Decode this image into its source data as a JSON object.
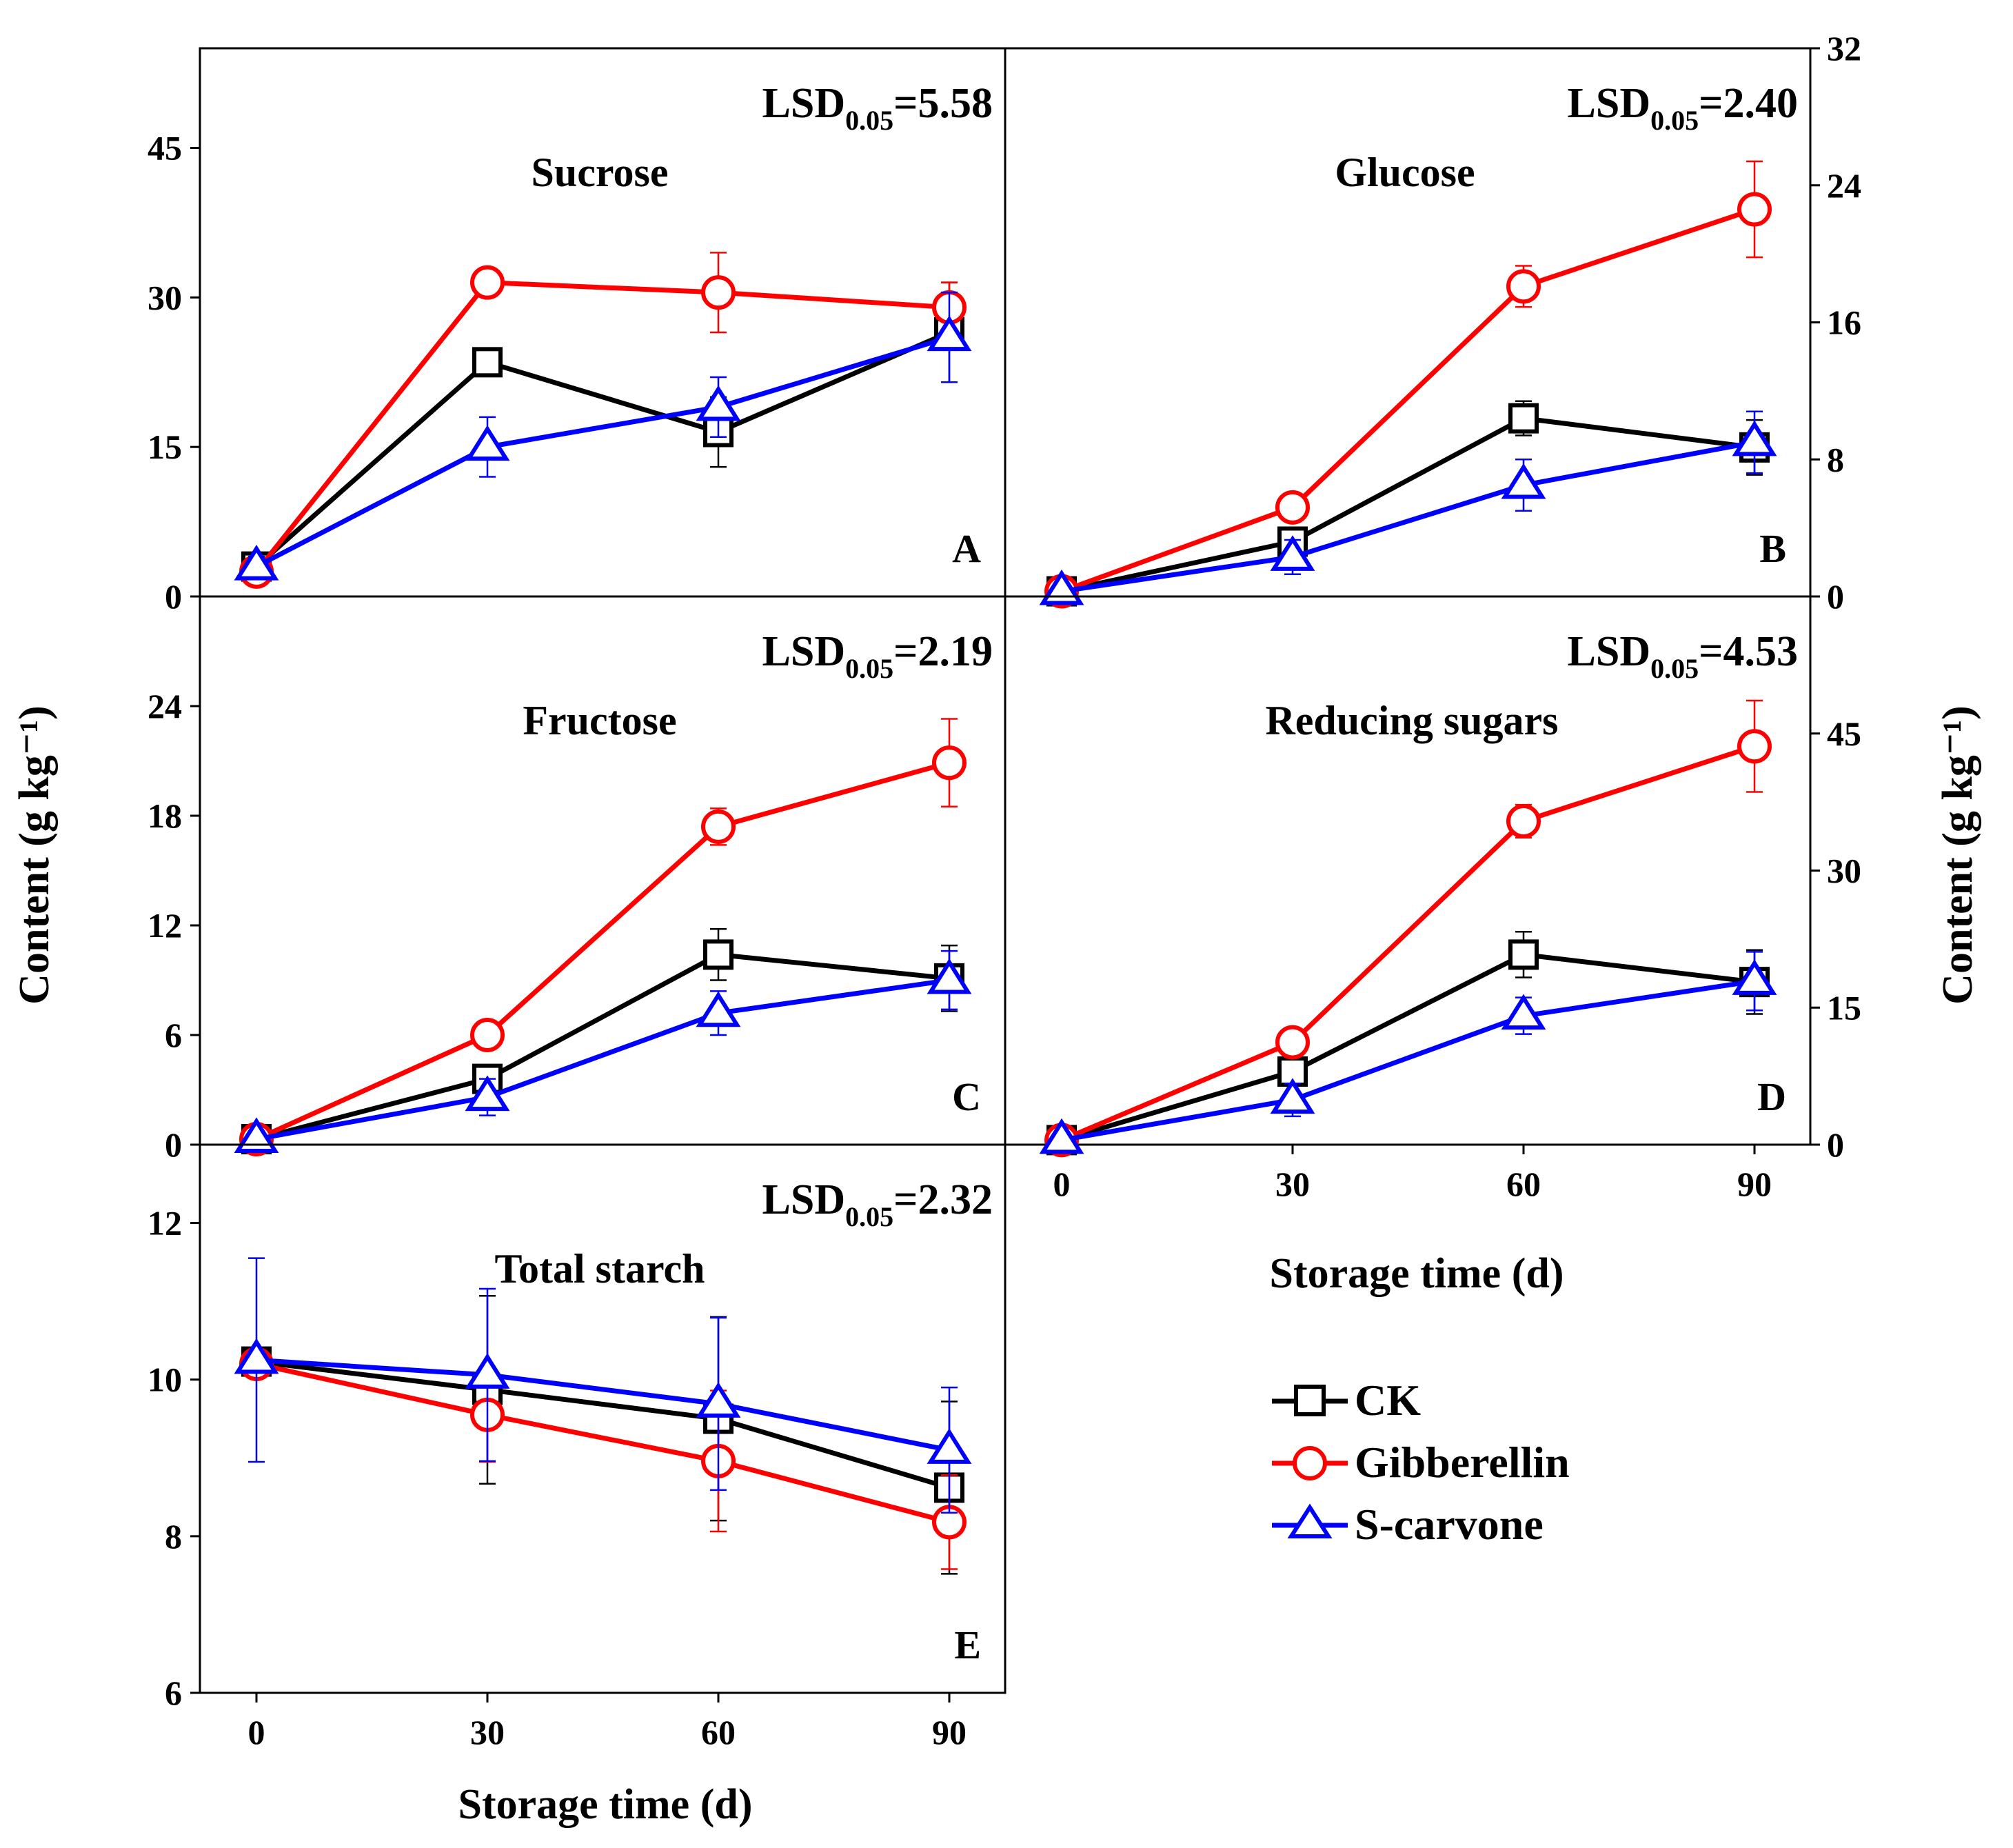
{
  "colors": {
    "CK": "#000000",
    "Gibberellin": "#ff0000",
    "S-carvone": "#0000ff"
  },
  "legend": {
    "items": [
      {
        "name": "CK",
        "marker": "square"
      },
      {
        "name": "Gibberellin",
        "marker": "circle"
      },
      {
        "name": "S-carvone",
        "marker": "triangle"
      }
    ]
  },
  "axis_titles": {
    "y_left": "Content (g kg⁻¹)",
    "y_right": "Content (g kg⁻¹)",
    "x_bottom": "Storage time (d)",
    "x_right": "Storage time (d)"
  },
  "chart_data": [
    {
      "id": "A",
      "type": "line",
      "title": "Sucrose",
      "lsd": "LSD0.05=5.58",
      "x": [
        0,
        30,
        60,
        90
      ],
      "x_ticks": [],
      "ylim": [
        0,
        55
      ],
      "y_ticks": [
        0,
        15,
        30,
        45
      ],
      "y_axis_side": "left",
      "series": [
        {
          "name": "CK",
          "values": [
            3,
            23.5,
            16.5,
            26.5
          ],
          "errors": [
            1.2,
            1.2,
            3.5,
            5.0
          ]
        },
        {
          "name": "Gibberellin",
          "values": [
            2.5,
            31.5,
            30.5,
            29
          ],
          "errors": [
            1.2,
            1.0,
            4.0,
            2.5
          ]
        },
        {
          "name": "S-carvone",
          "values": [
            3,
            15,
            19,
            26
          ],
          "errors": [
            1.0,
            3.0,
            3.0,
            4.5
          ]
        }
      ]
    },
    {
      "id": "B",
      "type": "line",
      "title": "Glucose",
      "lsd": "LSD0.05=2.40",
      "x": [
        0,
        30,
        60,
        90
      ],
      "x_ticks": [],
      "ylim": [
        0,
        32
      ],
      "y_ticks": [
        0,
        8,
        16,
        24,
        32
      ],
      "y_axis_side": "right",
      "series": [
        {
          "name": "CK",
          "values": [
            0.3,
            3.2,
            10.4,
            8.7
          ],
          "errors": [
            0.2,
            0.6,
            1.0,
            1.6
          ]
        },
        {
          "name": "Gibberellin",
          "values": [
            0.3,
            5.2,
            18.1,
            22.6
          ],
          "errors": [
            0.2,
            0.7,
            1.2,
            2.8
          ]
        },
        {
          "name": "S-carvone",
          "values": [
            0.3,
            2.3,
            6.5,
            9.0
          ],
          "errors": [
            0.2,
            1.0,
            1.5,
            1.8
          ]
        }
      ]
    },
    {
      "id": "C",
      "type": "line",
      "title": "Fructose",
      "lsd": "LSD0.05=2.19",
      "x": [
        0,
        30,
        60,
        90
      ],
      "x_ticks": [],
      "ylim": [
        0,
        30
      ],
      "y_ticks": [
        0,
        6,
        12,
        18,
        24
      ],
      "y_axis_side": "left",
      "series": [
        {
          "name": "CK",
          "values": [
            0.3,
            3.6,
            10.4,
            9.1
          ],
          "errors": [
            0.2,
            0.6,
            1.4,
            1.8
          ]
        },
        {
          "name": "Gibberellin",
          "values": [
            0.3,
            6.0,
            17.4,
            20.9
          ],
          "errors": [
            0.2,
            0.6,
            1.0,
            2.4
          ]
        },
        {
          "name": "S-carvone",
          "values": [
            0.3,
            2.6,
            7.2,
            9.0
          ],
          "errors": [
            0.2,
            1.0,
            1.2,
            1.6
          ]
        }
      ]
    },
    {
      "id": "D",
      "type": "line",
      "title": "Reducing sugars",
      "lsd": "LSD0.05=4.53",
      "x": [
        0,
        30,
        60,
        90
      ],
      "x_ticks": [
        0,
        30,
        60,
        90
      ],
      "ylim": [
        0,
        60
      ],
      "y_ticks": [
        0,
        15,
        30,
        45
      ],
      "y_axis_side": "right",
      "series": [
        {
          "name": "CK",
          "values": [
            0.5,
            8.0,
            20.8,
            17.8
          ],
          "errors": [
            0.3,
            1.5,
            2.5,
            3.5
          ]
        },
        {
          "name": "Gibberellin",
          "values": [
            0.5,
            11.2,
            35.4,
            43.6
          ],
          "errors": [
            0.3,
            1.4,
            1.8,
            5.0
          ]
        },
        {
          "name": "S-carvone",
          "values": [
            0.5,
            4.9,
            14.1,
            17.9
          ],
          "errors": [
            0.3,
            1.8,
            2.0,
            3.2
          ]
        }
      ]
    },
    {
      "id": "E",
      "type": "line",
      "title": "Total starch",
      "lsd": "LSD0.05=2.32",
      "x": [
        0,
        30,
        60,
        90
      ],
      "x_ticks": [
        0,
        30,
        60,
        90
      ],
      "ylim": [
        6,
        13
      ],
      "y_ticks": [
        6,
        8,
        10,
        12
      ],
      "y_axis_side": "left",
      "series": [
        {
          "name": "CK",
          "values": [
            10.23,
            9.87,
            9.5,
            8.62
          ],
          "errors": [
            0.1,
            1.2,
            1.3,
            1.1
          ]
        },
        {
          "name": "Gibberellin",
          "values": [
            10.2,
            9.55,
            8.96,
            8.18
          ],
          "errors": [
            0.1,
            0.6,
            0.9,
            0.6
          ]
        },
        {
          "name": "S-carvone",
          "values": [
            10.25,
            10.06,
            9.69,
            9.1
          ],
          "errors": [
            1.3,
            1.1,
            1.1,
            0.8
          ]
        }
      ]
    }
  ]
}
